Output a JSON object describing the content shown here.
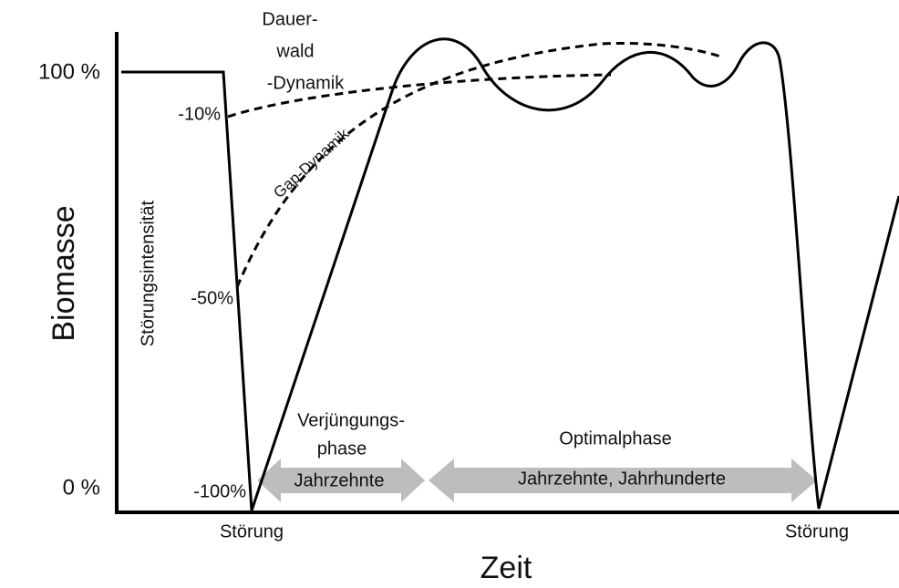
{
  "y_axis": {
    "title": "Biomasse",
    "top_label": "100 %",
    "bottom_label": "0 %"
  },
  "x_axis": {
    "title": "Zeit",
    "events": [
      "Störung",
      "Störung"
    ]
  },
  "disturbance": {
    "title": "Störungsintensität",
    "levels": [
      "-10%",
      "-50%",
      "-100%"
    ]
  },
  "curves": {
    "dauerwald": [
      "Dauer-",
      "wald",
      "-Dynamik"
    ],
    "gap": "Gap-Dynamik"
  },
  "phases": [
    {
      "name": [
        "Verjüngungs-",
        "phase"
      ],
      "duration": "Jahrzehnte"
    },
    {
      "name": [
        "Optimalphase"
      ],
      "duration": "Jahrzehnte, Jahrhunderte"
    }
  ]
}
